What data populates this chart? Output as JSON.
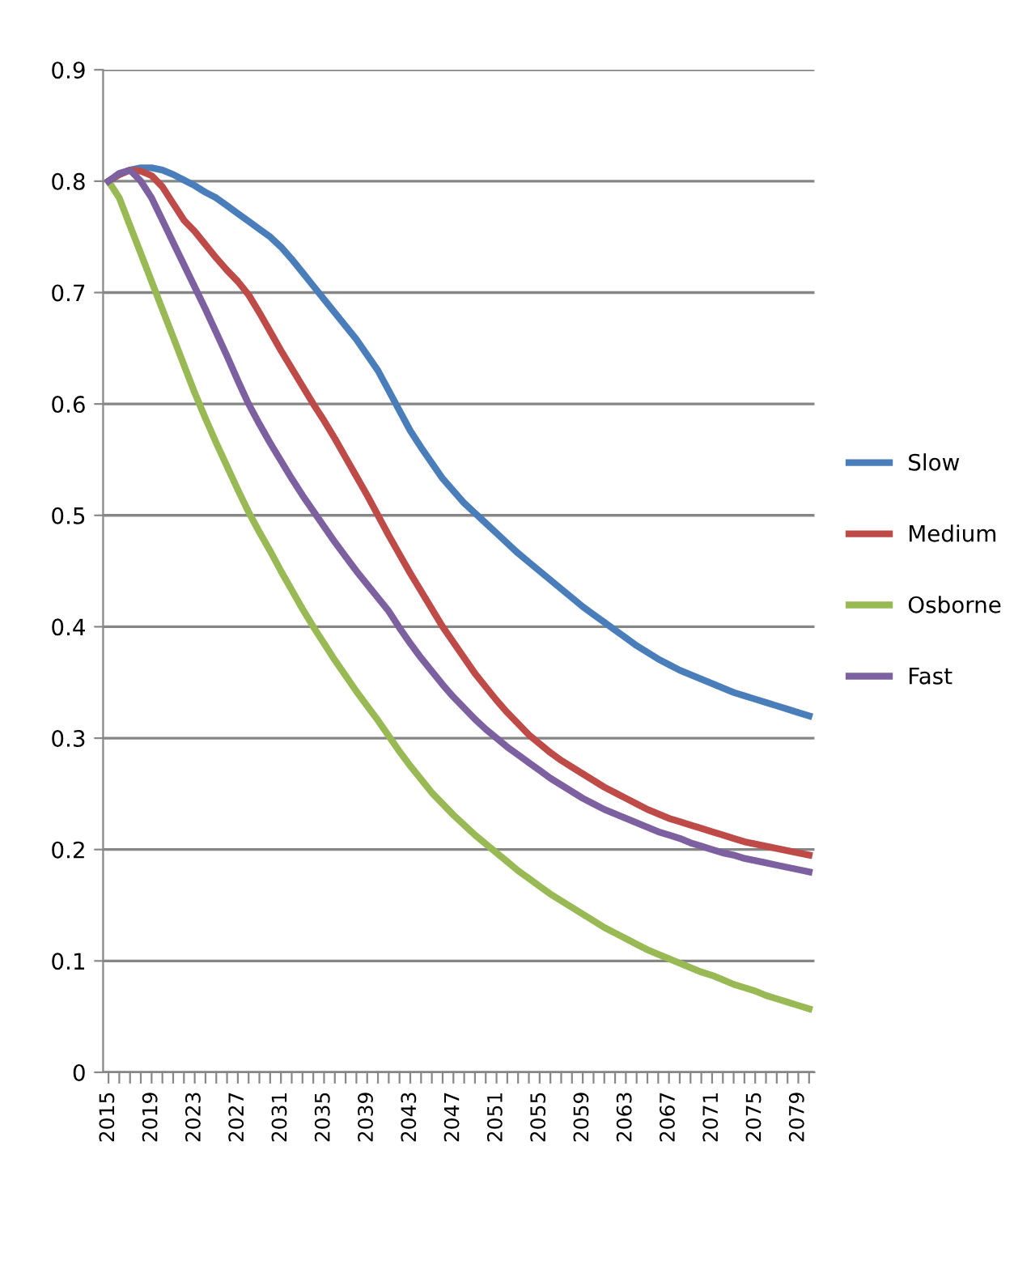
{
  "chart_data": {
    "type": "line",
    "categories": [
      "2015",
      null,
      null,
      null,
      "2019",
      null,
      null,
      null,
      "2023",
      null,
      null,
      null,
      "2027",
      null,
      null,
      null,
      "2031",
      null,
      null,
      null,
      "2035",
      null,
      null,
      null,
      "2039",
      null,
      null,
      null,
      "2043",
      null,
      null,
      null,
      "2047",
      null,
      null,
      null,
      "2051",
      null,
      null,
      null,
      "2055",
      null,
      null,
      null,
      "2059",
      null,
      null,
      null,
      "2063",
      null,
      null,
      null,
      "2067",
      null,
      null,
      null,
      "2071",
      null,
      null,
      null,
      "2075",
      null,
      null,
      null,
      "2079",
      null
    ],
    "series": [
      {
        "name": "Slow",
        "color": "#4a7ebb",
        "values": [
          0.8,
          0.806,
          0.81,
          0.812,
          0.812,
          0.81,
          0.806,
          0.801,
          0.796,
          0.79,
          0.785,
          0.778,
          0.771,
          0.764,
          0.757,
          0.75,
          0.741,
          0.73,
          0.718,
          0.706,
          0.694,
          0.682,
          0.67,
          0.658,
          0.644,
          0.63,
          0.612,
          0.594,
          0.576,
          0.561,
          0.547,
          0.533,
          0.522,
          0.511,
          0.502,
          0.493,
          0.484,
          0.475,
          0.466,
          0.458,
          0.45,
          0.442,
          0.434,
          0.426,
          0.418,
          0.411,
          0.404,
          0.397,
          0.39,
          0.383,
          0.377,
          0.371,
          0.366,
          0.361,
          0.357,
          0.353,
          0.349,
          0.345,
          0.341,
          0.338,
          0.335,
          0.332,
          0.329,
          0.326,
          0.323,
          0.32
        ]
      },
      {
        "name": "Medium",
        "color": "#be4b48",
        "values": [
          0.8,
          0.806,
          0.81,
          0.809,
          0.805,
          0.795,
          0.78,
          0.765,
          0.755,
          0.743,
          0.731,
          0.72,
          0.71,
          0.698,
          0.682,
          0.665,
          0.648,
          0.632,
          0.616,
          0.6,
          0.585,
          0.569,
          0.552,
          0.535,
          0.518,
          0.5,
          0.482,
          0.465,
          0.448,
          0.432,
          0.416,
          0.4,
          0.386,
          0.372,
          0.358,
          0.346,
          0.334,
          0.323,
          0.313,
          0.303,
          0.295,
          0.287,
          0.28,
          0.274,
          0.268,
          0.262,
          0.256,
          0.251,
          0.246,
          0.241,
          0.236,
          0.232,
          0.228,
          0.225,
          0.222,
          0.219,
          0.216,
          0.213,
          0.21,
          0.207,
          0.205,
          0.203,
          0.201,
          0.199,
          0.197,
          0.195
        ]
      },
      {
        "name": "Osborne",
        "color": "#98b954",
        "values": [
          0.8,
          0.785,
          0.76,
          0.735,
          0.71,
          0.685,
          0.66,
          0.635,
          0.61,
          0.587,
          0.565,
          0.544,
          0.523,
          0.503,
          0.485,
          0.468,
          0.45,
          0.433,
          0.416,
          0.4,
          0.385,
          0.37,
          0.356,
          0.342,
          0.329,
          0.316,
          0.302,
          0.288,
          0.275,
          0.263,
          0.251,
          0.241,
          0.231,
          0.222,
          0.213,
          0.205,
          0.197,
          0.189,
          0.181,
          0.174,
          0.167,
          0.16,
          0.154,
          0.148,
          0.142,
          0.136,
          0.13,
          0.125,
          0.12,
          0.115,
          0.11,
          0.106,
          0.102,
          0.098,
          0.094,
          0.09,
          0.087,
          0.083,
          0.079,
          0.076,
          0.073,
          0.069,
          0.066,
          0.063,
          0.06,
          0.057
        ]
      },
      {
        "name": "Fast",
        "color": "#7d60a0",
        "values": [
          0.8,
          0.807,
          0.81,
          0.8,
          0.785,
          0.765,
          0.745,
          0.725,
          0.705,
          0.685,
          0.664,
          0.643,
          0.621,
          0.6,
          0.582,
          0.565,
          0.549,
          0.533,
          0.518,
          0.504,
          0.49,
          0.476,
          0.463,
          0.45,
          0.438,
          0.426,
          0.414,
          0.399,
          0.385,
          0.372,
          0.36,
          0.348,
          0.337,
          0.327,
          0.317,
          0.308,
          0.3,
          0.292,
          0.285,
          0.278,
          0.271,
          0.264,
          0.258,
          0.252,
          0.246,
          0.241,
          0.236,
          0.232,
          0.228,
          0.224,
          0.22,
          0.216,
          0.213,
          0.21,
          0.206,
          0.203,
          0.2,
          0.197,
          0.195,
          0.192,
          0.19,
          0.188,
          0.186,
          0.184,
          0.182,
          0.18
        ]
      }
    ],
    "ylim": [
      0,
      0.9
    ],
    "yticks": [
      0,
      {
        "value": 0.1,
        "label": "0.1"
      },
      {
        "value": 0.2,
        "label": "0.2"
      },
      {
        "value": 0.3,
        "label": "0.3"
      },
      {
        "value": 0.4,
        "label": "0.4"
      },
      {
        "value": 0.5,
        "label": "0.5"
      },
      {
        "value": 0.6,
        "label": "0.6"
      },
      {
        "value": 0.7,
        "label": "0.7"
      },
      {
        "value": 0.8,
        "label": "0.8"
      },
      {
        "value": 0.9,
        "label": "0.9"
      }
    ],
    "grid": "y",
    "legend": "right",
    "marker": "none",
    "line_style": "solid"
  }
}
